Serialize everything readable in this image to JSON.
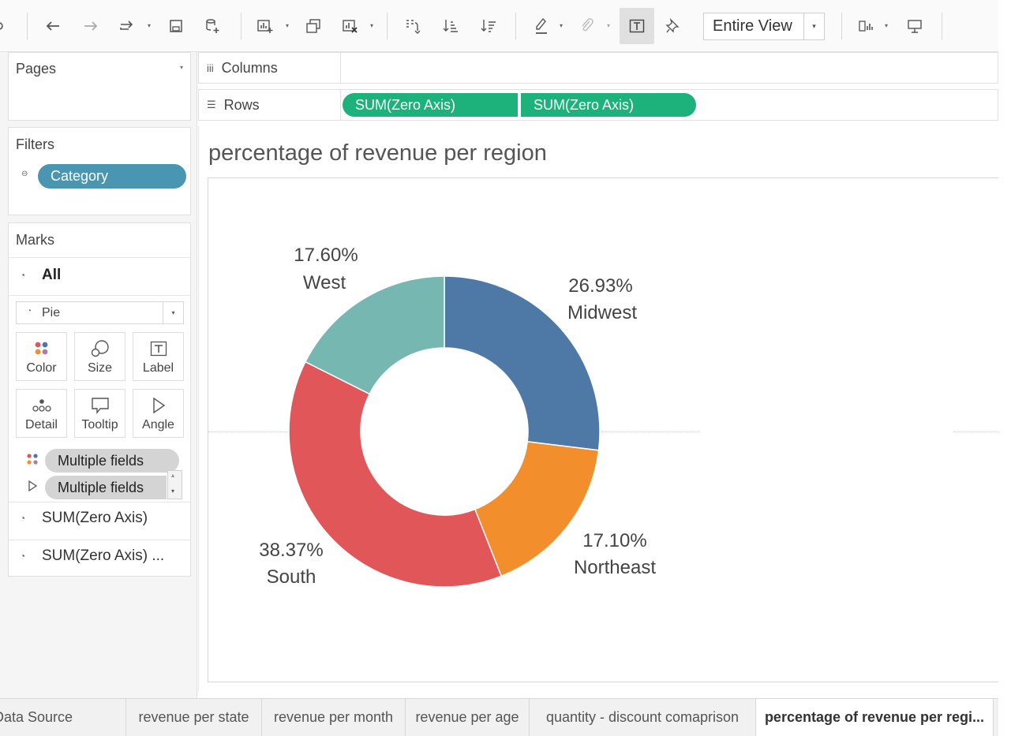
{
  "toolbar": {
    "view_size": "Entire View"
  },
  "pages": {
    "title": "Pages"
  },
  "filters": {
    "title": "Filters",
    "pill": "Category"
  },
  "marks": {
    "title": "Marks",
    "all_label": "All",
    "mark_type": "Pie",
    "buttons": [
      {
        "label": "Color",
        "icon": "color-icon"
      },
      {
        "label": "Size",
        "icon": "size-icon"
      },
      {
        "label": "Label",
        "icon": "label-icon"
      },
      {
        "label": "Detail",
        "icon": "detail-icon"
      },
      {
        "label": "Tooltip",
        "icon": "tooltip-icon"
      },
      {
        "label": "Angle",
        "icon": "angle-icon"
      }
    ],
    "fields": [
      "Multiple fields",
      "Multiple fields"
    ],
    "measures": [
      "SUM(Zero Axis)",
      "SUM(Zero Axis) ..."
    ]
  },
  "shelves": {
    "columns": "Columns",
    "rows": "Rows",
    "row_pills": [
      "SUM(Zero Axis)",
      "SUM(Zero Axis)"
    ]
  },
  "view": {
    "title": "percentage of revenue per region"
  },
  "chart_data": {
    "type": "pie",
    "title": "percentage of revenue per region",
    "donut": true,
    "categories": [
      "Midwest",
      "Northeast",
      "South",
      "West"
    ],
    "values": [
      26.93,
      17.1,
      38.37,
      17.6
    ],
    "labels": [
      "26.93%",
      "17.10%",
      "38.37%",
      "17.60%"
    ],
    "colors": [
      "#4e79a7",
      "#f28e2b",
      "#e15759",
      "#76b7b2"
    ]
  },
  "tabs": [
    "Data Source",
    "revenue per state",
    "revenue per month",
    "revenue per age",
    "quantity - discount comaprison",
    "percentage of revenue per regi..."
  ],
  "colors": {
    "pill_green": "#1db27b",
    "pill_blue": "#4996b2",
    "pill_grey": "#d4d4d4"
  }
}
